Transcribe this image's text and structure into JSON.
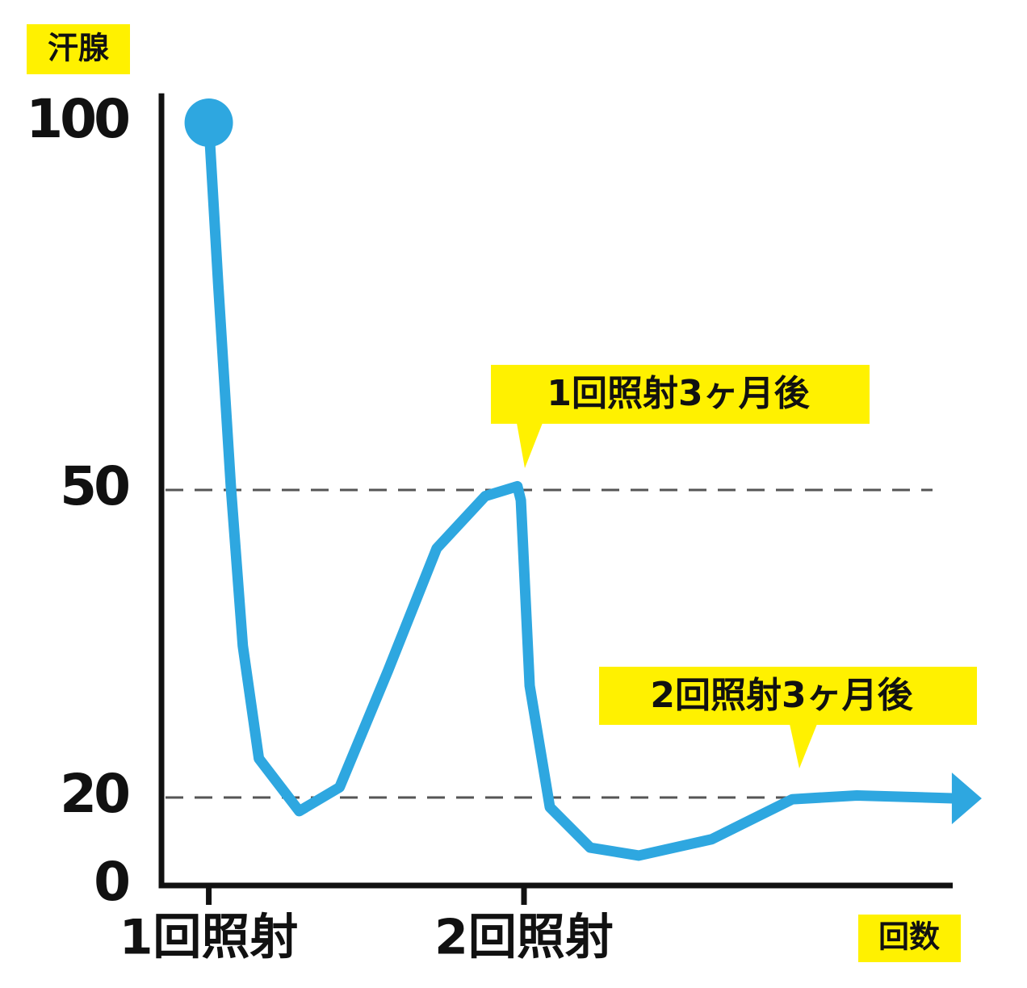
{
  "chart_data": {
    "type": "line",
    "y_label": "汗腺",
    "x_label": "回数",
    "x": [
      1,
      1.03,
      1.07,
      1.108,
      1.159,
      1.287,
      1.415,
      1.569,
      1.723,
      1.877,
      1.979,
      1.99,
      2.018,
      2.082,
      2.21,
      2.364,
      2.595,
      2.851,
      3.056,
      3.37
    ],
    "series": [
      {
        "color": "#2ea7e0",
        "values": [
          100,
          78,
          50.5,
          34.8,
          23.8,
          16.9,
          21,
          32.4,
          44.3,
          49.4,
          50.5,
          49,
          30.9,
          17.8,
          8.6,
          6.8,
          10.5,
          19.6,
          20.2,
          19.8
        ]
      }
    ],
    "xlim": [
      0.85,
      3.36
    ],
    "xticks": [
      {
        "value": 1,
        "label": "1回照射"
      },
      {
        "value": 2,
        "label": "2回照射"
      }
    ],
    "ylim": [
      0,
      104
    ],
    "yticks": [
      0,
      20,
      50,
      100
    ],
    "annotations": [
      "1回照射3ヶ月後",
      "2回照射3ヶ月後"
    ]
  }
}
